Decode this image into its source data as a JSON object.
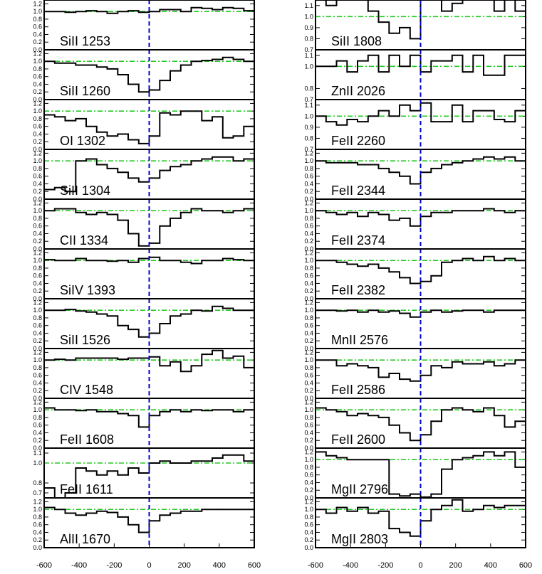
{
  "chart_data": {
    "type": "line",
    "style": "step",
    "grid": false,
    "colors": {
      "spectrum": "#000000",
      "continuum": "#22cc22",
      "zero_velocity": "#0000cc",
      "frame": "#000000"
    },
    "x_ticks": [
      -600,
      -400,
      -200,
      0,
      200,
      400,
      600
    ],
    "x_tick_labels": [
      "-600",
      "-400",
      "-200",
      "0",
      "200",
      "400",
      "600"
    ],
    "xlim": [
      -600,
      600
    ],
    "x": [
      -600,
      -540,
      -480,
      -420,
      -360,
      -300,
      -240,
      -180,
      -120,
      -60,
      0,
      60,
      120,
      180,
      240,
      300,
      360,
      420,
      480,
      540,
      600
    ],
    "columns": [
      {
        "panels": [
          {
            "label": "SiII 1253",
            "ylim": [
              0.0,
              1.3
            ],
            "ticks": [
              "1.2",
              "1.0",
              "0.8",
              "0.6",
              "0.4",
              "0.2",
              "0.0"
            ],
            "flux": [
              1.0,
              1.0,
              0.98,
              1.0,
              1.02,
              1.0,
              0.95,
              1.0,
              1.02,
              0.98,
              1.0,
              1.05,
              1.05,
              1.0,
              1.1,
              1.08,
              1.05,
              1.1,
              1.08,
              1.02
            ]
          },
          {
            "label": "SiII 1260",
            "ylim": [
              0.0,
              1.3
            ],
            "ticks": [
              "1.2",
              "1.0",
              "0.8",
              "0.6",
              "0.4",
              "0.2",
              "0.0"
            ],
            "flux": [
              1.0,
              0.95,
              0.95,
              0.9,
              0.9,
              0.85,
              0.8,
              0.65,
              0.4,
              0.2,
              0.25,
              0.5,
              0.75,
              0.9,
              1.0,
              1.02,
              1.05,
              1.1,
              1.05,
              1.0
            ]
          },
          {
            "label": "OI 1302",
            "ylim": [
              0.0,
              1.3
            ],
            "ticks": [
              "1.2",
              "1.0",
              "0.8",
              "0.6",
              "0.4",
              "0.2",
              "0.0"
            ],
            "flux": [
              0.9,
              0.85,
              0.75,
              0.8,
              0.6,
              0.45,
              0.35,
              0.4,
              0.25,
              0.15,
              0.35,
              0.95,
              0.9,
              1.0,
              1.0,
              0.75,
              0.85,
              0.3,
              0.35,
              0.6
            ]
          },
          {
            "label": "SiII 1304",
            "ylim": [
              0.0,
              1.3
            ],
            "ticks": [
              "1.2",
              "1.0",
              "0.8",
              "0.6",
              "0.4",
              "0.2",
              "0.0"
            ],
            "flux": [
              0.25,
              0.3,
              0.2,
              1.0,
              1.05,
              0.9,
              0.8,
              0.7,
              0.55,
              0.45,
              0.55,
              0.75,
              0.85,
              0.9,
              1.0,
              1.05,
              1.1,
              1.1,
              1.0,
              1.05
            ]
          },
          {
            "label": "CII 1334",
            "ylim": [
              0.0,
              1.3
            ],
            "ticks": [
              "1.2",
              "1.0",
              "0.8",
              "0.6",
              "0.4",
              "0.2",
              "0.0"
            ],
            "flux": [
              1.0,
              1.05,
              1.05,
              0.95,
              0.9,
              0.95,
              0.9,
              0.75,
              0.4,
              0.08,
              0.15,
              0.6,
              0.8,
              0.95,
              1.05,
              1.0,
              1.0,
              0.95,
              1.0,
              1.05
            ]
          },
          {
            "label": "SiIV 1393",
            "ylim": [
              0.0,
              1.3
            ],
            "ticks": [
              "1.2",
              "1.0",
              "0.8",
              "0.6",
              "0.4",
              "0.2",
              "0.0"
            ],
            "flux": [
              1.02,
              1.0,
              1.0,
              1.05,
              1.0,
              1.0,
              0.98,
              1.0,
              0.95,
              1.05,
              1.08,
              1.0,
              1.0,
              0.95,
              0.92,
              1.0,
              1.0,
              1.05,
              1.02,
              1.0
            ]
          },
          {
            "label": "SiII 1526",
            "ylim": [
              0.0,
              1.3
            ],
            "ticks": [
              "1.2",
              "1.0",
              "0.8",
              "0.6",
              "0.4",
              "0.2",
              "0.0"
            ],
            "flux": [
              1.0,
              1.0,
              1.02,
              0.98,
              0.95,
              0.9,
              0.85,
              0.6,
              0.5,
              0.3,
              0.4,
              0.65,
              0.85,
              0.9,
              1.0,
              0.98,
              1.1,
              1.05,
              1.0,
              1.0
            ]
          },
          {
            "label": "CIV 1548",
            "ylim": [
              0.0,
              1.3
            ],
            "ticks": [
              "1.2",
              "1.0",
              "0.8",
              "0.6",
              "0.4",
              "0.2",
              "0.0"
            ],
            "flux": [
              1.0,
              1.02,
              1.0,
              1.05,
              1.05,
              1.05,
              1.05,
              1.02,
              1.05,
              1.05,
              1.08,
              0.85,
              0.95,
              0.7,
              0.85,
              1.15,
              1.25,
              1.05,
              1.1,
              0.8
            ]
          },
          {
            "label": "FeII 1608",
            "ylim": [
              0.0,
              1.3
            ],
            "ticks": [
              "1.2",
              "1.0",
              "0.8",
              "0.6",
              "0.4",
              "0.2",
              "0.0"
            ],
            "flux": [
              1.05,
              1.0,
              1.0,
              0.98,
              1.0,
              0.95,
              0.95,
              0.9,
              0.85,
              0.55,
              0.85,
              0.95,
              1.0,
              0.95,
              1.0,
              0.98,
              1.0,
              1.0,
              0.95,
              1.0
            ]
          },
          {
            "label": "FeII 1611",
            "ylim": [
              0.65,
              1.15
            ],
            "ticks": [
              "1.1",
              "1.0",
              "0.8",
              "0.7"
            ],
            "tick_values": [
              1.1,
              1.0,
              0.8,
              0.7
            ],
            "flux": [
              0.75,
              0.65,
              0.7,
              0.95,
              0.92,
              0.88,
              0.92,
              0.88,
              0.95,
              0.9,
              1.0,
              1.02,
              1.0,
              1.0,
              1.02,
              1.02,
              1.05,
              1.08,
              1.08,
              1.02
            ]
          },
          {
            "label": "AlII 1670",
            "ylim": [
              0.0,
              1.3
            ],
            "ticks": [
              "1.2",
              "1.0",
              "0.8",
              "0.6",
              "0.4",
              "0.2",
              "0.0"
            ],
            "flux": [
              1.05,
              1.0,
              0.9,
              0.85,
              0.9,
              0.95,
              0.92,
              0.8,
              0.6,
              0.4,
              0.7,
              0.85,
              0.9,
              0.95,
              0.95,
              1.0,
              1.0,
              1.0,
              1.0,
              1.0
            ]
          }
        ]
      },
      {
        "panels": [
          {
            "label": "SiII 1808",
            "ylim": [
              0.7,
              1.15
            ],
            "ticks": [
              "1.1",
              "1.0",
              "0.9",
              "0.8",
              "0.7"
            ],
            "flux": [
              1.2,
              1.1,
              1.2,
              1.2,
              1.2,
              1.05,
              0.95,
              0.85,
              0.9,
              0.8,
              1.2,
              1.2,
              1.05,
              1.12,
              1.2,
              1.2,
              1.2,
              1.05,
              1.2,
              1.05
            ]
          },
          {
            "label": "ZnII 2026",
            "ylim": [
              0.7,
              1.15
            ],
            "ticks": [
              "1.1",
              "1.0",
              "0.8",
              "0.7"
            ],
            "tick_values": [
              1.1,
              1.0,
              0.8,
              0.7
            ],
            "flux": [
              1.0,
              1.0,
              1.05,
              0.95,
              1.05,
              1.1,
              0.95,
              1.1,
              1.0,
              1.1,
              0.95,
              1.05,
              1.05,
              1.1,
              0.95,
              1.1,
              0.92,
              0.92,
              1.1,
              1.1
            ]
          },
          {
            "label": "FeII 2260",
            "ylim": [
              0.7,
              1.15
            ],
            "ticks": [
              "1.1",
              "1.0",
              "0.9",
              "0.8",
              "0.7"
            ],
            "flux": [
              1.0,
              0.95,
              0.92,
              0.97,
              0.95,
              1.0,
              1.05,
              1.0,
              1.1,
              1.05,
              1.12,
              0.95,
              0.95,
              1.1,
              0.95,
              1.05,
              1.05,
              0.97,
              0.95,
              1.05
            ]
          },
          {
            "label": "FeII 2344",
            "ylim": [
              0.0,
              1.3
            ],
            "ticks": [
              "1.2",
              "1.0",
              "0.8",
              "0.6",
              "0.4",
              "0.2",
              "0.0"
            ],
            "flux": [
              1.0,
              0.95,
              0.95,
              0.95,
              0.9,
              0.9,
              0.8,
              0.7,
              0.6,
              0.4,
              0.7,
              0.8,
              0.9,
              0.95,
              1.0,
              1.05,
              1.1,
              1.05,
              1.1,
              1.0
            ]
          },
          {
            "label": "FeII 2374",
            "ylim": [
              0.0,
              1.3
            ],
            "ticks": [
              "1.2",
              "1.0",
              "0.8",
              "0.6",
              "0.4",
              "0.2",
              "0.0"
            ],
            "flux": [
              1.0,
              0.95,
              0.9,
              0.95,
              0.85,
              0.95,
              0.9,
              0.75,
              0.8,
              0.6,
              0.85,
              0.95,
              0.95,
              1.0,
              1.0,
              1.0,
              1.05,
              1.0,
              0.95,
              1.0
            ]
          },
          {
            "label": "FeII 2382",
            "ylim": [
              0.0,
              1.3
            ],
            "ticks": [
              "1.2",
              "1.0",
              "0.8",
              "0.6",
              "0.4",
              "0.2",
              "0.0"
            ],
            "flux": [
              1.0,
              1.0,
              0.95,
              0.9,
              0.85,
              0.9,
              0.8,
              0.7,
              0.55,
              0.4,
              0.45,
              0.6,
              0.95,
              1.0,
              1.05,
              1.0,
              1.1,
              1.0,
              1.05,
              1.0
            ]
          },
          {
            "label": "MnII 2576",
            "ylim": [
              0.0,
              1.3
            ],
            "ticks": [
              "1.2",
              "1.0",
              "0.8",
              "0.6",
              "0.4",
              "0.2",
              "0.0"
            ],
            "flux": [
              1.0,
              1.0,
              0.98,
              1.0,
              0.95,
              1.0,
              0.95,
              0.98,
              0.92,
              0.82,
              0.95,
              1.0,
              0.95,
              0.98,
              1.0,
              1.0,
              0.95,
              1.0,
              1.0,
              1.0
            ]
          },
          {
            "label": "FeII 2586",
            "ylim": [
              0.0,
              1.3
            ],
            "ticks": [
              "1.2",
              "1.0",
              "0.8",
              "0.6",
              "0.4",
              "0.2",
              "0.0"
            ],
            "flux": [
              1.0,
              1.0,
              0.85,
              0.9,
              0.85,
              0.8,
              0.55,
              0.65,
              0.5,
              0.45,
              0.6,
              0.85,
              0.8,
              0.95,
              0.9,
              0.9,
              0.95,
              0.85,
              0.9,
              1.0
            ]
          },
          {
            "label": "FeII 2600",
            "ylim": [
              0.0,
              1.3
            ],
            "ticks": [
              "1.2",
              "1.0",
              "0.8",
              "0.6",
              "0.4",
              "0.2",
              "0.0"
            ],
            "flux": [
              1.05,
              1.0,
              0.95,
              0.85,
              0.9,
              0.85,
              0.8,
              0.6,
              0.4,
              0.2,
              0.35,
              0.7,
              1.0,
              1.05,
              1.0,
              0.95,
              1.05,
              0.85,
              0.55,
              0.7
            ]
          },
          {
            "label": "MgII 2796",
            "ylim": [
              0.0,
              1.3
            ],
            "ticks": [
              "1.2",
              "1.0",
              "0.8",
              "0.6",
              "0.4",
              "0.2",
              "0.0"
            ],
            "flux": [
              1.2,
              1.1,
              1.05,
              1.0,
              1.0,
              1.0,
              1.0,
              0.1,
              0.05,
              0.1,
              0.02,
              0.1,
              0.75,
              1.0,
              1.05,
              1.1,
              1.2,
              1.1,
              1.2,
              0.8
            ]
          },
          {
            "label": "MgII 2803",
            "ylim": [
              0.0,
              1.3
            ],
            "ticks": [
              "1.2",
              "1.0",
              "0.8",
              "0.6",
              "0.4",
              "0.2",
              "0.0"
            ],
            "flux": [
              1.0,
              0.9,
              1.05,
              0.95,
              1.05,
              0.9,
              0.95,
              0.5,
              0.4,
              0.3,
              0.7,
              1.0,
              1.1,
              1.25,
              0.95,
              1.0,
              1.1,
              1.05,
              1.1,
              1.1
            ]
          }
        ]
      }
    ]
  }
}
